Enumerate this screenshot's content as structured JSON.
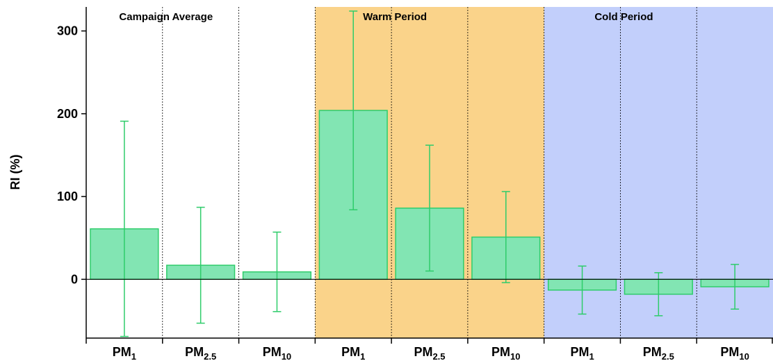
{
  "chart_data": {
    "type": "bar",
    "ylabel": "RI (%)",
    "groups": [
      {
        "name": "Campaign Average",
        "color": "#ffffff"
      },
      {
        "name": "Warm Period",
        "color": "#fad38a"
      },
      {
        "name": "Cold Period",
        "color": "#c2cffb"
      }
    ],
    "categories": [
      "PM1",
      "PM2.5",
      "PM10",
      "PM1",
      "PM2.5",
      "PM10",
      "PM1",
      "PM2.5",
      "PM10"
    ],
    "values": [
      61,
      17,
      9,
      204,
      86,
      51,
      -13,
      -18,
      -9
    ],
    "errors": [
      130,
      70,
      48,
      120,
      76,
      55,
      29,
      26,
      27
    ],
    "color": "#82e5b3",
    "edge_color": "#2ecc6a",
    "ylim": [
      -71,
      329
    ],
    "yticks": [
      0,
      100,
      200,
      300
    ]
  }
}
